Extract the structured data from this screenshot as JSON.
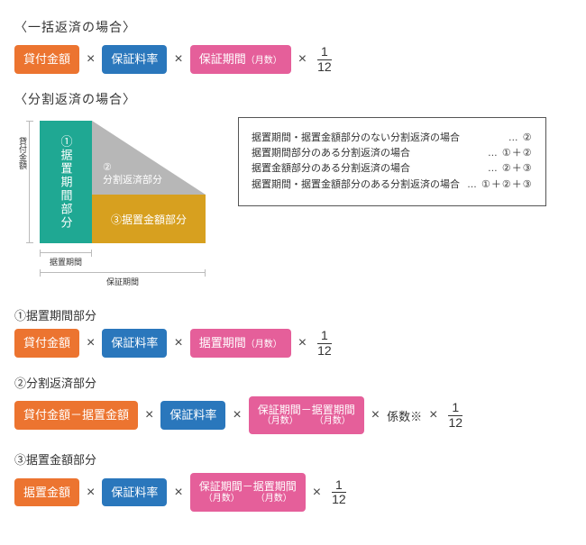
{
  "colors": {
    "orange": "#ec7430",
    "blue": "#2a77bc",
    "pink": "#e55f9a",
    "green": "#1fa893",
    "gray": "#b7b7b7",
    "gold": "#d7a01f",
    "text": "#333333"
  },
  "section1": {
    "title": "〈一括返済の場合〉",
    "t1": "貸付金額",
    "t2": "保証料率",
    "t3_main": "保証期間",
    "t3_sub": "（月数）",
    "frac_n": "1",
    "frac_d": "12"
  },
  "section2": {
    "title": "〈分割返済の場合〉",
    "chart": {
      "ylabel": "貸付金額",
      "x1": "据置期間",
      "x2": "保証期間",
      "box1": "①据置期間部分",
      "lbl2_a": "②",
      "lbl2_b": "分割返済部分",
      "box3": "③据置金額部分"
    },
    "notes": [
      {
        "l": "据置期間・据置金額部分のない分割返済の場合",
        "r": "… ②"
      },
      {
        "l": "据置期間部分のある分割返済の場合",
        "r": "… ①＋②"
      },
      {
        "l": "据置金額部分のある分割返済の場合",
        "r": "… ②＋③"
      },
      {
        "l": "据置期間・据置金額部分のある分割返済の場合",
        "r": "… ①＋②＋③"
      }
    ]
  },
  "f1": {
    "title": "①据置期間部分",
    "t1": "貸付金額",
    "t2": "保証料率",
    "t3_main": "据置期間",
    "t3_sub": "（月数）",
    "frac_n": "1",
    "frac_d": "12"
  },
  "f2": {
    "title": "②分割返済部分",
    "t1": "貸付金額－据置金額",
    "t2": "保証料率",
    "t3a_top": "保証期間－据置期間",
    "t3a_bot_l": "（月数）",
    "t3a_bot_r": "（月数）",
    "coef": "係数※",
    "frac_n": "1",
    "frac_d": "12"
  },
  "f3": {
    "title": "③据置金額部分",
    "t1": "据置金額",
    "t2": "保証料率",
    "t3a_top": "保証期間－据置期間",
    "t3a_bot_l": "（月数）",
    "t3a_bot_r": "（月数）",
    "frac_n": "1",
    "frac_d": "12"
  },
  "op_mul": "×"
}
